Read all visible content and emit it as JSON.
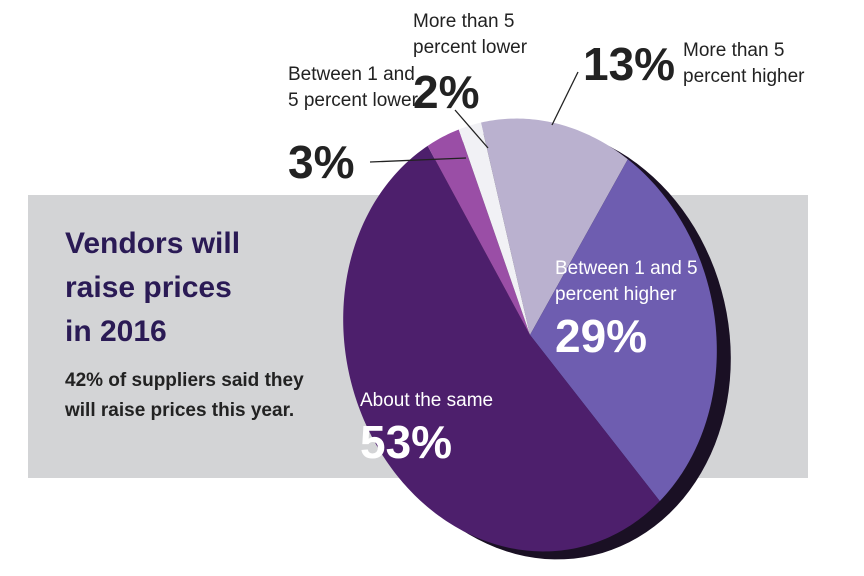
{
  "chart_data": {
    "type": "pie",
    "title": "Vendors will raise prices in 2016",
    "subtitle": "42% of suppliers said they will raise prices this year.",
    "categories": [
      "More than 5 percent higher",
      "Between 1 and 5 percent higher",
      "About the same",
      "Between 1 and 5 percent lower",
      "More than 5 percent lower"
    ],
    "values": [
      13,
      29,
      53,
      3,
      2
    ],
    "value_labels": [
      "13%",
      "29%",
      "53%",
      "3%",
      "2%"
    ],
    "colors": [
      "#bab1cf",
      "#6e5db0",
      "#4d1f6c",
      "#9a4ea6",
      "#f1f1f5"
    ]
  }
}
